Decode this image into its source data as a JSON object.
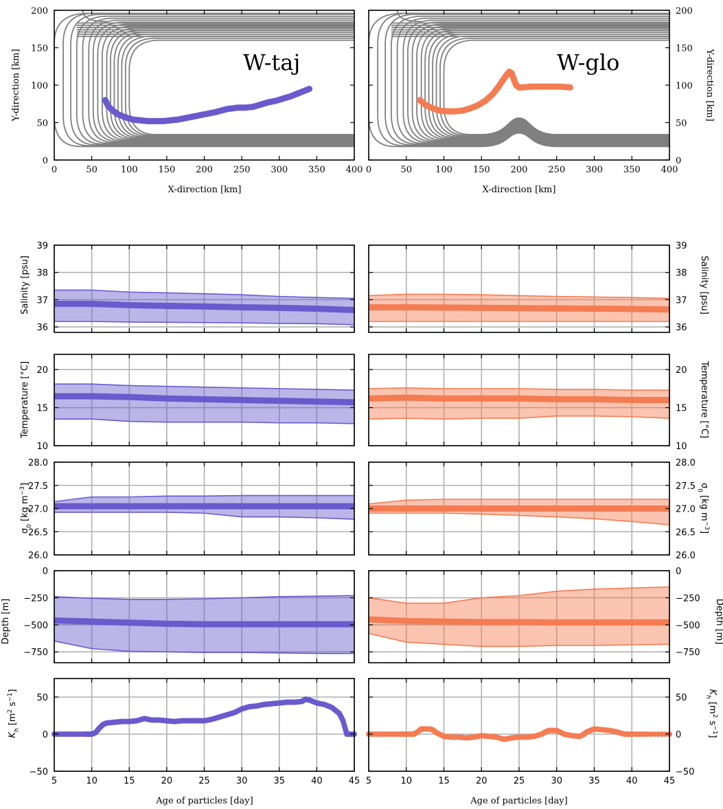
{
  "colors": {
    "taj": "#6a5acd",
    "glo": "#f47c52",
    "contour": "#808080",
    "grid": "#b0b0b0"
  },
  "labels": {
    "x_dir": "X-direction [km]",
    "y_dir": "Y-direction [km]",
    "x_age": "Age of particles [day]",
    "salinity": "Salinity [psu]",
    "temperature": "Temperature [°C]",
    "sigma_sym": "σ",
    "sigma_sub": "0",
    "sigma_unit": " [kg m",
    "sigma_exp": "−3",
    "sigma_close": "]",
    "depth": "Depth [m]",
    "kh_sym": "K",
    "kh_sub": "h",
    "kh_unit1": " [m",
    "kh_exp1": "2",
    "kh_unit2": " s",
    "kh_exp2": "−1",
    "kh_close": "]",
    "taj_title": "W-taj",
    "glo_title": "W-glo"
  },
  "chart_data": [
    {
      "id": "map-taj",
      "type": "line",
      "title": "W-taj",
      "xlabel": "X-direction [km]",
      "ylabel": "Y-direction [km]",
      "xlim": [
        0,
        400
      ],
      "ylim": [
        0,
        200
      ],
      "xticks": [
        0,
        50,
        100,
        150,
        200,
        250,
        300,
        350,
        400
      ],
      "yticks": [
        0,
        50,
        100,
        150,
        200
      ],
      "series": [
        {
          "x": [
            68,
            72,
            78,
            85,
            95,
            105,
            115,
            125,
            135,
            145,
            155,
            165,
            175,
            185,
            200,
            215,
            230,
            245,
            255,
            265,
            275,
            285,
            295,
            305,
            315,
            325,
            335,
            340
          ],
          "y": [
            80,
            72,
            66,
            61,
            57,
            54,
            53,
            52,
            52,
            52,
            53,
            54,
            56,
            58,
            61,
            64,
            68,
            70,
            70,
            71,
            74,
            77,
            79,
            82,
            85,
            89,
            93,
            95
          ]
        }
      ]
    },
    {
      "id": "map-glo",
      "type": "line",
      "title": "W-glo",
      "xlabel": "X-direction [km]",
      "ylabel": "Y-direction [km]",
      "xlim": [
        0,
        400
      ],
      "ylim": [
        0,
        200
      ],
      "xticks": [
        0,
        50,
        100,
        150,
        200,
        250,
        300,
        350,
        400
      ],
      "yticks": [
        0,
        50,
        100,
        150,
        200
      ],
      "series": [
        {
          "x": [
            68,
            75,
            85,
            95,
            105,
            115,
            125,
            135,
            145,
            155,
            165,
            172,
            178,
            183,
            187,
            190,
            193,
            196,
            200,
            205,
            215,
            225,
            240,
            255,
            268
          ],
          "y": [
            80,
            74,
            69,
            66,
            65,
            65,
            66,
            69,
            73,
            79,
            88,
            97,
            106,
            113,
            118,
            116,
            108,
            100,
            97,
            97,
            98,
            98,
            98,
            98,
            97
          ]
        }
      ]
    },
    {
      "id": "sal-taj",
      "type": "area",
      "ylabel": "Salinity [psu]",
      "xlim": [
        5,
        45
      ],
      "ylim": [
        35.8,
        39
      ],
      "yticks": [
        36,
        37,
        38,
        39
      ],
      "xticks": [
        5,
        10,
        15,
        20,
        25,
        30,
        35,
        40,
        45
      ],
      "x": [
        5,
        10,
        15,
        20,
        25,
        30,
        35,
        40,
        45
      ],
      "mean": [
        36.85,
        36.85,
        36.8,
        36.77,
        36.75,
        36.72,
        36.7,
        36.67,
        36.62
      ],
      "upper": [
        37.35,
        37.35,
        37.28,
        37.25,
        37.22,
        37.18,
        37.12,
        37.08,
        37.05
      ],
      "lower": [
        36.2,
        36.2,
        36.18,
        36.17,
        36.16,
        36.15,
        36.13,
        36.12,
        36.08
      ]
    },
    {
      "id": "sal-glo",
      "type": "area",
      "ylabel": "Salinity [psu]",
      "xlim": [
        5,
        45
      ],
      "ylim": [
        35.8,
        39
      ],
      "yticks": [
        36,
        37,
        38,
        39
      ],
      "xticks": [
        5,
        10,
        15,
        20,
        25,
        30,
        35,
        40,
        45
      ],
      "x": [
        5,
        10,
        15,
        20,
        25,
        30,
        35,
        40,
        45
      ],
      "mean": [
        36.72,
        36.72,
        36.71,
        36.7,
        36.69,
        36.68,
        36.67,
        36.66,
        36.64
      ],
      "upper": [
        37.15,
        37.2,
        37.2,
        37.18,
        37.15,
        37.12,
        37.1,
        37.08,
        37.05
      ],
      "lower": [
        36.2,
        36.2,
        36.2,
        36.2,
        36.2,
        36.2,
        36.2,
        36.2,
        36.2
      ]
    },
    {
      "id": "temp-taj",
      "type": "area",
      "ylabel": "Temperature [°C]",
      "xlim": [
        5,
        45
      ],
      "ylim": [
        10,
        22
      ],
      "yticks": [
        10,
        15,
        20
      ],
      "xticks": [
        5,
        10,
        15,
        20,
        25,
        30,
        35,
        40,
        45
      ],
      "x": [
        5,
        10,
        15,
        20,
        25,
        30,
        35,
        40,
        45
      ],
      "mean": [
        16.5,
        16.5,
        16.4,
        16.2,
        16.1,
        16.0,
        15.9,
        15.8,
        15.7
      ],
      "upper": [
        18.1,
        18.1,
        17.9,
        17.8,
        17.7,
        17.6,
        17.5,
        17.4,
        17.3
      ],
      "lower": [
        13.5,
        13.5,
        13.2,
        13.1,
        13.1,
        13.1,
        13.0,
        13.0,
        12.9
      ]
    },
    {
      "id": "temp-glo",
      "type": "area",
      "ylabel": "Temperature [°C]",
      "xlim": [
        5,
        45
      ],
      "ylim": [
        10,
        22
      ],
      "yticks": [
        10,
        15,
        20
      ],
      "xticks": [
        5,
        10,
        15,
        20,
        25,
        30,
        35,
        40,
        45
      ],
      "x": [
        5,
        10,
        15,
        20,
        25,
        30,
        35,
        40,
        45
      ],
      "mean": [
        16.2,
        16.3,
        16.2,
        16.2,
        16.2,
        16.1,
        16.1,
        16.0,
        16.0
      ],
      "upper": [
        17.5,
        17.6,
        17.5,
        17.5,
        17.5,
        17.4,
        17.4,
        17.3,
        17.3
      ],
      "lower": [
        13.5,
        13.6,
        13.5,
        13.6,
        13.6,
        13.9,
        13.9,
        13.8,
        13.6
      ]
    },
    {
      "id": "sig-taj",
      "type": "area",
      "ylabel": "σ0 [kg m−3]",
      "xlim": [
        5,
        45
      ],
      "ylim": [
        26,
        28
      ],
      "yticks": [
        26.0,
        26.5,
        27.0,
        27.5,
        28.0
      ],
      "xticks": [
        5,
        10,
        15,
        20,
        25,
        30,
        35,
        40,
        45
      ],
      "x": [
        5,
        10,
        15,
        20,
        25,
        30,
        35,
        40,
        45
      ],
      "mean": [
        27.05,
        27.05,
        27.05,
        27.05,
        27.05,
        27.05,
        27.05,
        27.05,
        27.05
      ],
      "upper": [
        27.15,
        27.25,
        27.25,
        27.27,
        27.27,
        27.28,
        27.28,
        27.28,
        27.28
      ],
      "lower": [
        26.92,
        26.92,
        26.92,
        26.92,
        26.9,
        26.82,
        26.82,
        26.8,
        26.77
      ]
    },
    {
      "id": "sig-glo",
      "type": "area",
      "ylabel": "σ0 [kg m−3]",
      "xlim": [
        5,
        45
      ],
      "ylim": [
        26,
        28
      ],
      "yticks": [
        26.0,
        26.5,
        27.0,
        27.5,
        28.0
      ],
      "xticks": [
        5,
        10,
        15,
        20,
        25,
        30,
        35,
        40,
        45
      ],
      "x": [
        5,
        10,
        15,
        20,
        25,
        30,
        35,
        40,
        45
      ],
      "mean": [
        27.0,
        27.0,
        27.0,
        27.0,
        27.0,
        27.0,
        27.0,
        27.0,
        27.0
      ],
      "upper": [
        27.1,
        27.18,
        27.2,
        27.2,
        27.2,
        27.2,
        27.2,
        27.2,
        27.2
      ],
      "lower": [
        26.9,
        26.9,
        26.9,
        26.88,
        26.85,
        26.82,
        26.78,
        26.72,
        26.65
      ]
    },
    {
      "id": "dep-taj",
      "type": "area",
      "ylabel": "Depth [m]",
      "xlim": [
        5,
        45
      ],
      "ylim": [
        -850,
        0
      ],
      "yticks": [
        -750,
        -500,
        -250,
        0
      ],
      "xticks": [
        5,
        10,
        15,
        20,
        25,
        30,
        35,
        40,
        45
      ],
      "x": [
        5,
        10,
        15,
        20,
        25,
        30,
        35,
        40,
        45
      ],
      "mean": [
        -460,
        -470,
        -480,
        -490,
        -495,
        -495,
        -495,
        -495,
        -495
      ],
      "upper": [
        -240,
        -255,
        -265,
        -265,
        -260,
        -250,
        -240,
        -235,
        -230
      ],
      "lower": [
        -650,
        -720,
        -745,
        -750,
        -755,
        -755,
        -760,
        -765,
        -765
      ]
    },
    {
      "id": "dep-glo",
      "type": "area",
      "ylabel": "Depth [m]",
      "xlim": [
        5,
        45
      ],
      "ylim": [
        -850,
        0
      ],
      "yticks": [
        -750,
        -500,
        -250,
        0
      ],
      "xticks": [
        5,
        10,
        15,
        20,
        25,
        30,
        35,
        40,
        45
      ],
      "x": [
        5,
        10,
        15,
        20,
        25,
        30,
        35,
        40,
        45
      ],
      "mean": [
        -450,
        -465,
        -470,
        -475,
        -475,
        -478,
        -478,
        -478,
        -478
      ],
      "upper": [
        -250,
        -300,
        -300,
        -250,
        -230,
        -190,
        -170,
        -160,
        -150
      ],
      "lower": [
        -580,
        -660,
        -680,
        -700,
        -700,
        -690,
        -690,
        -685,
        -680
      ]
    },
    {
      "id": "kh-taj",
      "type": "scatter",
      "ylabel": "Kh [m2 s−1]",
      "xlim": [
        5,
        45
      ],
      "ylim": [
        -50,
        75
      ],
      "yticks": [
        -50,
        0,
        50
      ],
      "xticks": [
        5,
        10,
        15,
        20,
        25,
        30,
        35,
        40,
        45
      ],
      "x": [
        5,
        7,
        9,
        10,
        10.5,
        11,
        11.5,
        12,
        13,
        14,
        15,
        16,
        17,
        18,
        19,
        20,
        21,
        22,
        23,
        24,
        25,
        26,
        27,
        28,
        29,
        30,
        31,
        32,
        33,
        34,
        35,
        36,
        37,
        38,
        38.5,
        39,
        40,
        41,
        42,
        43,
        43.5,
        44,
        45
      ],
      "y": [
        0,
        0,
        0,
        0,
        2,
        8,
        13,
        15,
        16,
        17,
        17,
        18,
        21,
        19,
        19,
        18,
        17,
        18,
        18,
        18,
        18,
        20,
        23,
        26,
        29,
        34,
        37,
        38,
        40,
        41,
        42,
        43,
        43,
        44,
        47,
        46,
        42,
        40,
        36,
        28,
        18,
        0,
        0
      ]
    },
    {
      "id": "kh-glo",
      "type": "scatter",
      "ylabel": "Kh [m2 s−1]",
      "xlim": [
        5,
        45
      ],
      "ylim": [
        -50,
        75
      ],
      "yticks": [
        -50,
        0,
        50
      ],
      "xticks": [
        5,
        10,
        15,
        20,
        25,
        30,
        35,
        40,
        45
      ],
      "x": [
        5,
        7,
        9,
        10,
        11,
        11.5,
        12,
        13,
        13.5,
        14,
        15,
        16,
        17,
        18,
        19,
        20,
        21,
        22,
        23,
        24,
        25,
        26,
        27,
        28,
        28.5,
        29,
        30,
        31,
        32,
        33,
        33.5,
        34,
        35,
        36,
        37,
        38,
        39,
        40,
        42,
        45
      ],
      "y": [
        0,
        0,
        0,
        0,
        0,
        3,
        7,
        7,
        6,
        2,
        -3,
        -4,
        -4,
        -5,
        -4,
        -2,
        -3,
        -4,
        -7,
        -5,
        -4,
        -4,
        -3,
        0,
        3,
        5,
        5,
        0,
        -2,
        -3,
        -1,
        3,
        7,
        6,
        5,
        3,
        0,
        0,
        0,
        0
      ]
    }
  ]
}
